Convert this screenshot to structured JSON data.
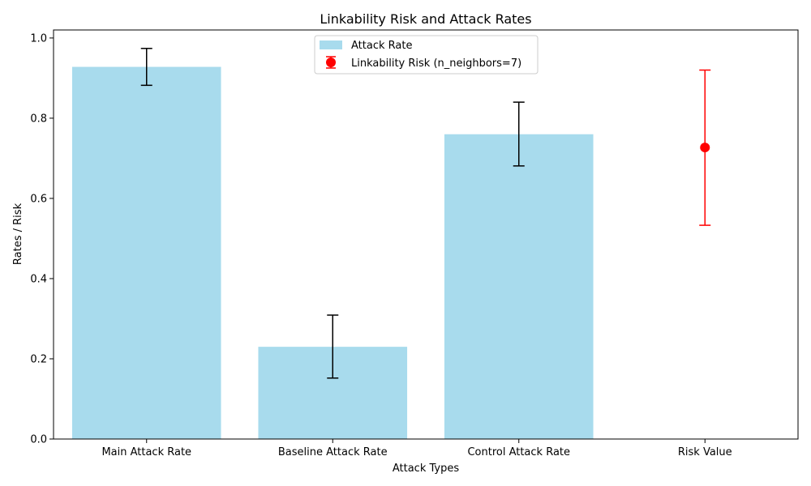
{
  "chart_data": {
    "type": "bar",
    "title": "Linkability Risk and Attack Rates",
    "xlabel": "Attack Types",
    "ylabel": "Rates / Risk",
    "ylim": [
      0,
      1.02
    ],
    "yticks": [
      0.0,
      0.2,
      0.4,
      0.6,
      0.8,
      1.0
    ],
    "ytick_labels": [
      "0.0",
      "0.2",
      "0.4",
      "0.6",
      "0.8",
      "1.0"
    ],
    "categories": [
      "Main Attack Rate",
      "Baseline Attack Rate",
      "Control Attack Rate",
      "Risk Value"
    ],
    "grid": false,
    "legend_position": "top-center",
    "bars": {
      "name": "Attack Rate",
      "color": "#a8dbed",
      "values": [
        0.928,
        0.23,
        0.76
      ],
      "error_low": [
        0.882,
        0.152,
        0.681
      ],
      "error_high": [
        0.974,
        0.309,
        0.84
      ],
      "error_color": "#000000"
    },
    "risk": {
      "name": "Linkability Risk (n_neighbors=7)",
      "color": "#ff0000",
      "category": "Risk Value",
      "value": 0.727,
      "ci_low": 0.533,
      "ci_high": 0.92
    }
  }
}
